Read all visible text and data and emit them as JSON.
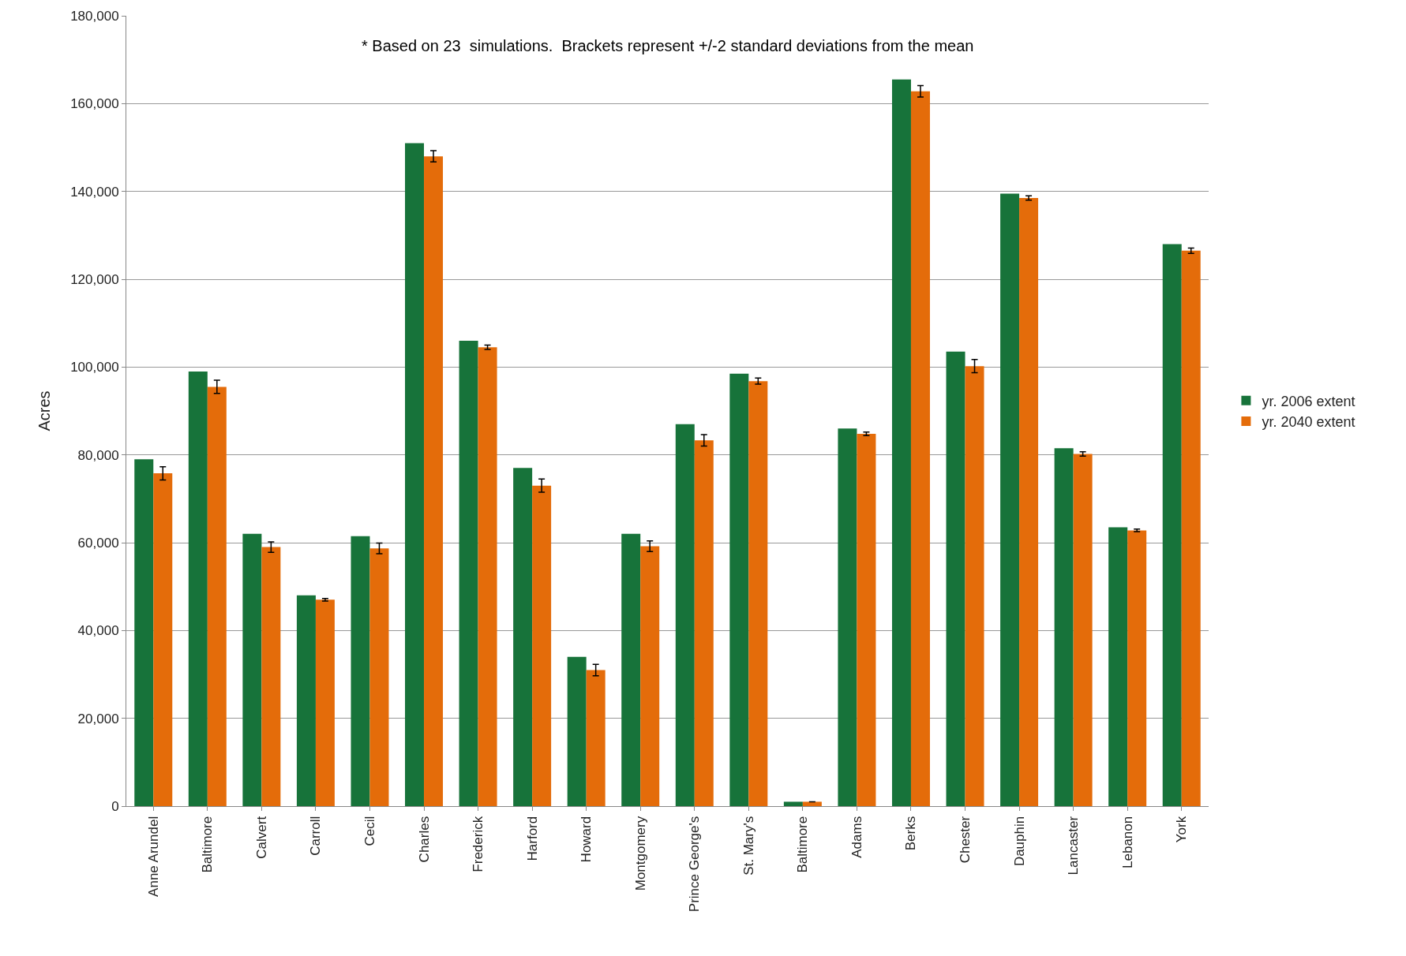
{
  "chart_data": {
    "type": "bar",
    "ylabel": "Acres",
    "categories": [
      "Anne Arundel",
      "Baltimore",
      "Calvert",
      "Carroll",
      "Cecil",
      "Charles",
      "Frederick",
      "Harford",
      "Howard",
      "Montgomery",
      "Prince George's",
      "St. Mary's",
      "Baltimore",
      "Adams",
      "Berks",
      "Chester",
      "Dauphin",
      "Lancaster",
      "Lebanon",
      "York"
    ],
    "series": [
      {
        "name": "yr. 2006 extent",
        "color": "#17733a",
        "values": [
          79000,
          99000,
          62000,
          48000,
          61500,
          151000,
          106000,
          77000,
          34000,
          62000,
          87000,
          98500,
          1000,
          86000,
          165500,
          103500,
          139500,
          81500,
          63500,
          128000
        ]
      },
      {
        "name": "yr. 2040 extent",
        "color": "#e46c0a",
        "values": [
          75800,
          95500,
          59000,
          47000,
          58700,
          148000,
          104500,
          73000,
          31000,
          59200,
          83300,
          96800,
          1000,
          84800,
          162800,
          100200,
          138500,
          80200,
          62800,
          126500
        ],
        "errors": [
          1500,
          1500,
          1200,
          300,
          1200,
          1300,
          500,
          1500,
          1300,
          1200,
          1300,
          700,
          null,
          400,
          1300,
          1500,
          500,
          500,
          300,
          600
        ]
      }
    ],
    "ylim": [
      0,
      180000
    ],
    "yticks": [
      {
        "value": 0,
        "label": "0"
      },
      {
        "value": 20000,
        "label": "20,000"
      },
      {
        "value": 40000,
        "label": "40,000"
      },
      {
        "value": 60000,
        "label": "60,000"
      },
      {
        "value": 80000,
        "label": "80,000"
      },
      {
        "value": 100000,
        "label": "100,000"
      },
      {
        "value": 120000,
        "label": "120,000"
      },
      {
        "value": 140000,
        "label": "140,000"
      },
      {
        "value": 160000,
        "label": "160,000"
      },
      {
        "value": 180000,
        "label": "180,000"
      }
    ],
    "grid": "y",
    "legend": "right",
    "annotations": [
      "* Based on 23  simulations.  Brackets represent +/-2 standard deviations from the mean"
    ]
  }
}
